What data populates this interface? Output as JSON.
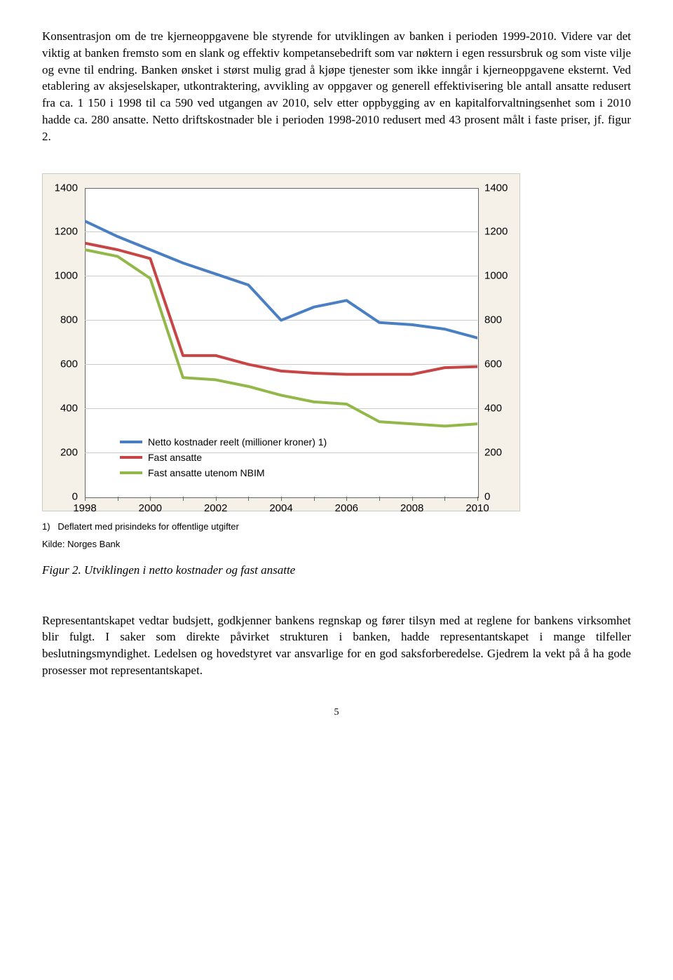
{
  "paragraph1": "Konsentrasjon om de tre kjerneoppgavene ble styrende for utviklingen av banken i perioden 1999-2010. Videre var det viktig at banken fremsto som en slank og effektiv kompetansebedrift som var nøktern i egen ressursbruk og som viste vilje og evne til endring. Banken ønsket i størst mulig grad å kjøpe tjenester som ikke inngår i kjerneoppgavene eksternt. Ved etablering av aksjeselskaper, utkontraktering, avvikling av oppgaver og generell effektivisering ble antall ansatte redusert fra ca. 1 150 i 1998 til ca 590 ved utgangen av 2010, selv etter oppbygging av en kapitalforvaltningsenhet som i 2010 hadde ca. 280 ansatte. Netto driftskostnader ble i perioden 1998-2010 redusert med 43 prosent målt i faste priser, jf. figur 2.",
  "chart": {
    "type": "line",
    "background_color": "#f5f0e8",
    "plot_background": "#ffffff",
    "grid_color": "#cccccc",
    "axis_color": "#666666",
    "ylim": [
      0,
      1400
    ],
    "ytick_step": 200,
    "yticks": [
      0,
      200,
      400,
      600,
      800,
      1000,
      1200,
      1400
    ],
    "years": [
      1998,
      1999,
      2000,
      2001,
      2002,
      2003,
      2004,
      2005,
      2006,
      2007,
      2008,
      2009,
      2010
    ],
    "xticks": [
      1998,
      2000,
      2002,
      2004,
      2006,
      2008,
      2010
    ],
    "series": [
      {
        "name": "Netto kostnader reelt (millioner kroner) 1)",
        "color": "#4a7fc4",
        "width": 4,
        "values": [
          1250,
          1180,
          1120,
          1060,
          1010,
          960,
          800,
          860,
          890,
          790,
          780,
          760,
          720
        ]
      },
      {
        "name": "Fast ansatte",
        "color": "#c84545",
        "width": 4,
        "values": [
          1150,
          1120,
          1080,
          640,
          640,
          600,
          570,
          560,
          555,
          555,
          555,
          585,
          590
        ]
      },
      {
        "name": "Fast ansatte utenom NBIM",
        "color": "#93b84a",
        "width": 4,
        "values": [
          1120,
          1090,
          990,
          540,
          530,
          500,
          460,
          430,
          420,
          340,
          330,
          320,
          330
        ]
      }
    ],
    "footnote_label": "1)",
    "footnote_text": "Deflatert med prisindeks for offentlige utgifter",
    "source": "Kilde: Norges Bank"
  },
  "figure_caption": "Figur 2. Utviklingen i netto kostnader og fast ansatte",
  "paragraph2": "Representantskapet vedtar budsjett, godkjenner bankens regnskap og fører tilsyn med at reglene for bankens virksomhet blir fulgt. I saker som direkte påvirket strukturen i banken, hadde representantskapet i mange tilfeller beslutningsmyndighet. Ledelsen og hovedstyret var ansvarlige for en god saksforberedelse. Gjedrem la vekt på å ha gode prosesser mot representantskapet.",
  "page_number": "5"
}
